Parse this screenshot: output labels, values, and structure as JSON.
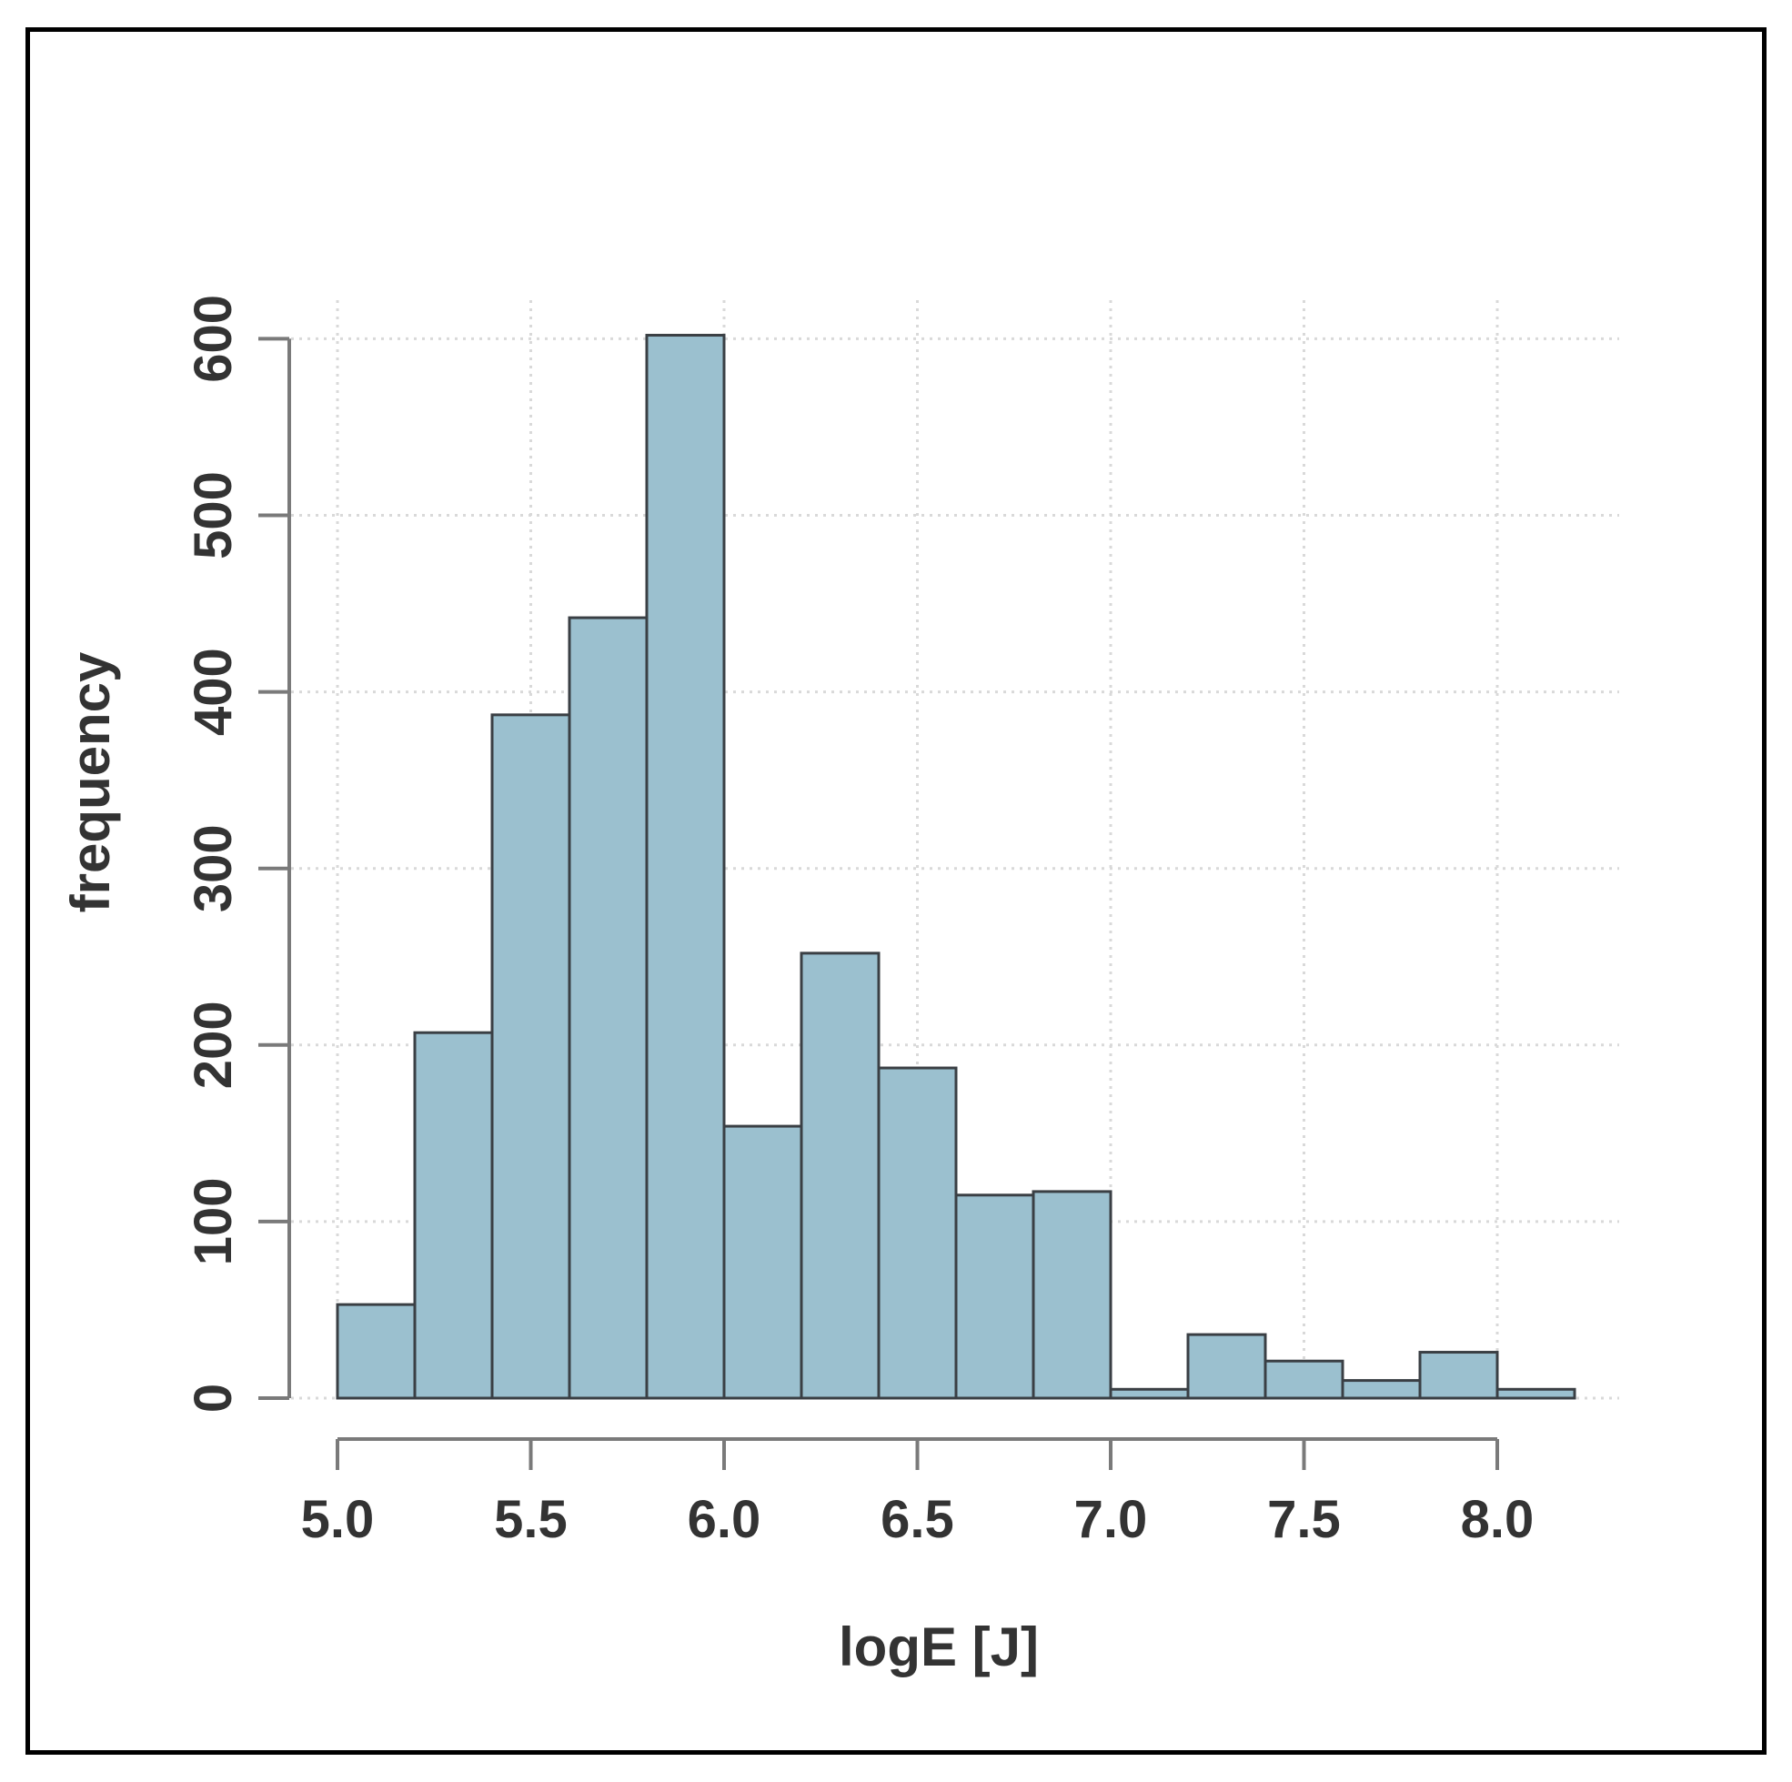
{
  "chart_data": {
    "type": "bar",
    "title": "",
    "xlabel": "logE [J]",
    "ylabel": "frequency",
    "xlim": [
      5.0,
      8.2
    ],
    "ylim": [
      0,
      600
    ],
    "bin_width": 0.2,
    "bin_starts": [
      5.0,
      5.2,
      5.4,
      5.6,
      5.8,
      6.0,
      6.2,
      6.4,
      6.6,
      6.8,
      7.0,
      7.2,
      7.4,
      7.6,
      7.8,
      8.0
    ],
    "values": [
      53,
      207,
      387,
      442,
      602,
      154,
      252,
      187,
      115,
      117,
      5,
      36,
      21,
      10,
      26,
      5
    ],
    "x_ticks": [
      "5.0",
      "5.5",
      "6.0",
      "6.5",
      "7.0",
      "7.5",
      "8.0"
    ],
    "y_ticks": [
      "0",
      "100",
      "200",
      "300",
      "400",
      "500",
      "600"
    ],
    "grid": true,
    "colors": {
      "bar_fill": "#9bc0cf",
      "bar_stroke": "#3a3f44",
      "grid": "#d9d9d9",
      "axis": "#7a7a7a",
      "text": "#333333"
    }
  }
}
